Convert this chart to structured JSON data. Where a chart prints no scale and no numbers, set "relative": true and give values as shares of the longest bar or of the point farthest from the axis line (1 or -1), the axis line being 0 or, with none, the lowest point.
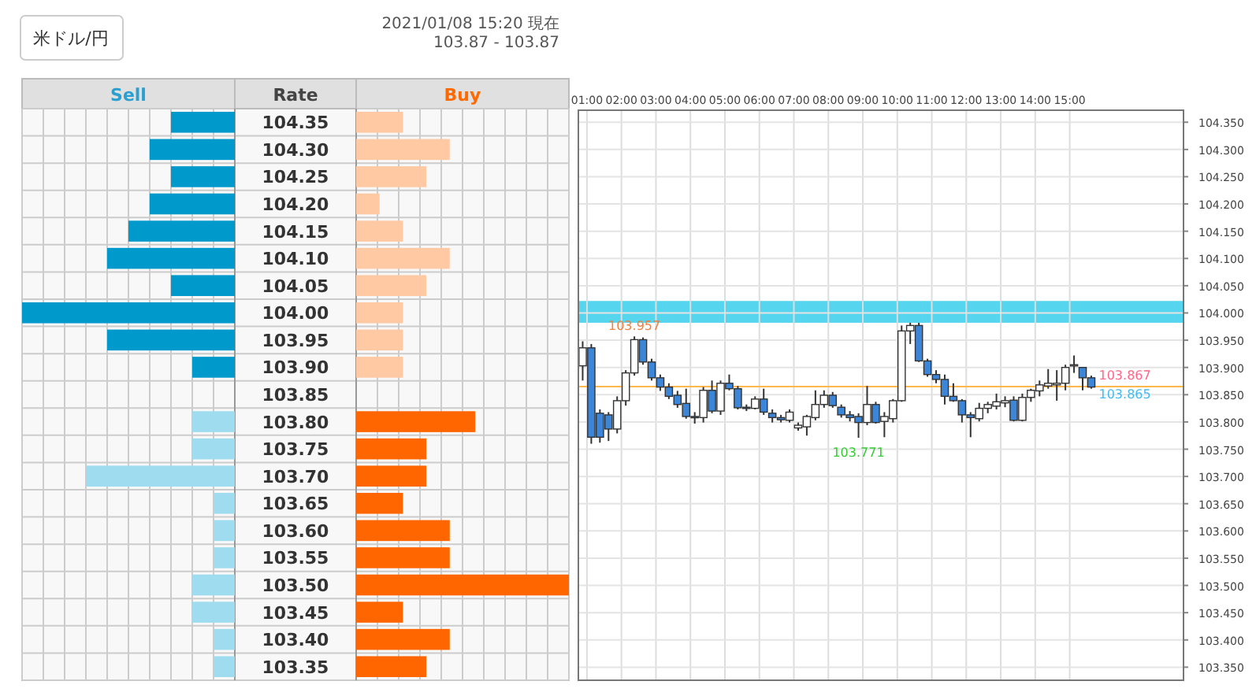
{
  "chart_data": [
    {
      "type": "other",
      "title": "米ドル/円",
      "annotations": [
        "2021/01/08 15:20 現在",
        "103.87 - 103.87"
      ]
    },
    {
      "type": "bar",
      "orientation": "horizontal",
      "relative": true,
      "ylabel": "Rate",
      "grid": true,
      "categories": [
        "104.35",
        "104.30",
        "104.25",
        "104.20",
        "104.15",
        "104.10",
        "104.05",
        "104.00",
        "103.95",
        "103.90",
        "103.85",
        "103.80",
        "103.75",
        "103.70",
        "103.65",
        "103.60",
        "103.55",
        "103.50",
        "103.45",
        "103.40",
        "103.35"
      ],
      "series": [
        {
          "name": "Sell",
          "color": "#2a9fd0",
          "colors": [
            "#0099cc",
            "#0099cc",
            "#0099cc",
            "#0099cc",
            "#0099cc",
            "#0099cc",
            "#0099cc",
            "#0099cc",
            "#0099cc",
            "#0099cc",
            null,
            "#9fdcf0",
            "#9fdcf0",
            "#9fdcf0",
            "#9fdcf0",
            "#9fdcf0",
            "#9fdcf0",
            "#9fdcf0",
            "#9fdcf0",
            "#9fdcf0",
            "#9fdcf0"
          ],
          "values": [
            -0.3,
            -0.4,
            -0.3,
            -0.4,
            -0.5,
            -0.6,
            -0.3,
            -1,
            -0.6,
            -0.2,
            0,
            -0.2,
            -0.2,
            -0.7,
            -0.1,
            -0.1,
            -0.1,
            -0.2,
            -0.2,
            -0.1,
            -0.1
          ]
        }
      ]
    },
    {
      "type": "bar",
      "orientation": "horizontal",
      "relative": true,
      "grid": true,
      "tick_labels": false,
      "categories": [
        "104.35",
        "104.30",
        "104.25",
        "104.20",
        "104.15",
        "104.10",
        "104.05",
        "104.00",
        "103.95",
        "103.90",
        "103.85",
        "103.80",
        "103.75",
        "103.70",
        "103.65",
        "103.60",
        "103.55",
        "103.50",
        "103.45",
        "103.40",
        "103.35"
      ],
      "series": [
        {
          "name": "Buy",
          "color": "#ff6a00",
          "colors": [
            "#ffc9a3",
            "#ffc9a3",
            "#ffc9a3",
            "#ffc9a3",
            "#ffc9a3",
            "#ffc9a3",
            "#ffc9a3",
            "#ffc9a3",
            "#ffc9a3",
            "#ffc9a3",
            null,
            "#ff6600",
            "#ff6600",
            "#ff6600",
            "#ff6600",
            "#ff6600",
            "#ff6600",
            "#ff6600",
            "#ff6600",
            "#ff6600",
            "#ff6600"
          ],
          "values": [
            0.22,
            0.44,
            0.33,
            0.11,
            0.22,
            0.44,
            0.33,
            0.22,
            0.22,
            0.22,
            0,
            0.56,
            0.33,
            0.33,
            0.22,
            0.44,
            0.44,
            1,
            0.22,
            0.44,
            0.33
          ]
        }
      ]
    },
    {
      "type": "candlestick",
      "grid": true,
      "x": [
        0.875,
        1.125,
        1.375,
        1.625,
        1.875,
        2.125,
        2.375,
        2.625,
        2.875,
        3.125,
        3.375,
        3.625,
        3.875,
        4.125,
        4.375,
        4.625,
        4.875,
        5.125,
        5.375,
        5.625,
        5.875,
        6.125,
        6.375,
        6.625,
        6.875,
        7.125,
        7.375,
        7.625,
        7.875,
        8.125,
        8.375,
        8.625,
        8.875,
        9.125,
        9.375,
        9.625,
        9.875,
        10.125,
        10.375,
        10.625,
        10.875,
        11.125,
        11.375,
        11.625,
        11.875,
        12.125,
        12.375,
        12.625,
        12.875,
        13.125,
        13.375,
        13.625,
        13.875,
        14.125,
        14.375,
        14.625,
        14.875,
        15.125,
        15.375,
        15.625
      ],
      "ohlc": [
        [
          103.903,
          103.948,
          103.876,
          103.936
        ],
        [
          103.936,
          103.943,
          103.76,
          103.772
        ],
        [
          103.816,
          103.823,
          103.762,
          103.772
        ],
        [
          103.813,
          103.818,
          103.765,
          103.787
        ],
        [
          103.787,
          103.847,
          103.779,
          103.839
        ],
        [
          103.839,
          103.895,
          103.83,
          103.89
        ],
        [
          103.89,
          103.957,
          103.885,
          103.951
        ],
        [
          103.951,
          103.955,
          103.905,
          103.91
        ],
        [
          103.91,
          103.916,
          103.876,
          103.881
        ],
        [
          103.881,
          103.887,
          103.857,
          103.864
        ],
        [
          103.864,
          103.871,
          103.842,
          103.847
        ],
        [
          103.849,
          103.857,
          103.826,
          103.832
        ],
        [
          103.834,
          103.861,
          103.806,
          103.81
        ],
        [
          103.81,
          103.818,
          103.797,
          103.808
        ],
        [
          103.808,
          103.864,
          103.799,
          103.858
        ],
        [
          103.858,
          103.876,
          103.816,
          103.82
        ],
        [
          103.82,
          103.876,
          103.813,
          103.871
        ],
        [
          103.871,
          103.887,
          103.858,
          103.861
        ],
        [
          103.861,
          103.866,
          103.823,
          103.826
        ],
        [
          103.827,
          103.832,
          103.82,
          103.825
        ],
        [
          103.825,
          103.847,
          103.823,
          103.842
        ],
        [
          103.842,
          103.861,
          103.813,
          103.818
        ],
        [
          103.816,
          103.823,
          103.799,
          103.808
        ],
        [
          103.808,
          103.813,
          103.799,
          103.804
        ],
        [
          103.803,
          103.823,
          103.799,
          103.818
        ],
        [
          103.789,
          103.799,
          103.784,
          103.794
        ],
        [
          103.791,
          103.813,
          103.775,
          103.81
        ],
        [
          103.808,
          103.858,
          103.803,
          103.832
        ],
        [
          103.832,
          103.858,
          103.826,
          103.849
        ],
        [
          103.849,
          103.855,
          103.826,
          103.83
        ],
        [
          103.827,
          103.832,
          103.808,
          103.813
        ],
        [
          103.813,
          103.82,
          103.801,
          103.808
        ],
        [
          103.81,
          103.816,
          103.771,
          103.799
        ],
        [
          103.799,
          103.866,
          103.794,
          103.832
        ],
        [
          103.832,
          103.837,
          103.797,
          103.799
        ],
        [
          103.801,
          103.818,
          103.772,
          103.81
        ],
        [
          103.806,
          103.842,
          103.799,
          103.839
        ],
        [
          103.839,
          103.977,
          103.837,
          103.967
        ],
        [
          103.967,
          103.982,
          103.943,
          103.977
        ],
        [
          103.977,
          103.982,
          103.91,
          103.912
        ],
        [
          103.912,
          103.916,
          103.883,
          103.887
        ],
        [
          103.887,
          103.895,
          103.871,
          103.878
        ],
        [
          103.878,
          103.887,
          103.832,
          103.847
        ],
        [
          103.847,
          103.871,
          103.837,
          103.839
        ],
        [
          103.839,
          103.842,
          103.799,
          103.813
        ],
        [
          103.813,
          103.818,
          103.772,
          103.808
        ],
        [
          103.806,
          103.835,
          103.801,
          103.825
        ],
        [
          103.825,
          103.837,
          103.816,
          103.832
        ],
        [
          103.829,
          103.852,
          103.823,
          103.837
        ],
        [
          103.835,
          103.847,
          103.827,
          103.839
        ],
        [
          103.84,
          103.847,
          103.801,
          103.803
        ],
        [
          103.803,
          103.852,
          103.801,
          103.845
        ],
        [
          103.845,
          103.861,
          103.837,
          103.858
        ],
        [
          103.857,
          103.876,
          103.847,
          103.868
        ],
        [
          103.866,
          103.897,
          103.861,
          103.871
        ],
        [
          103.868,
          103.895,
          103.839,
          103.871
        ],
        [
          103.871,
          103.905,
          103.858,
          103.9
        ],
        [
          103.905,
          103.922,
          103.89,
          103.905
        ],
        [
          103.9,
          103.9,
          103.858,
          103.881
        ],
        [
          103.881,
          103.885,
          103.861,
          103.864
        ]
      ],
      "xlim": [
        0.75,
        18.3
      ],
      "xticks": [
        {
          "value": 1,
          "label": "01:00"
        },
        {
          "value": 2,
          "label": "02:00"
        },
        {
          "value": 3,
          "label": "03:00"
        },
        {
          "value": 4,
          "label": "04:00"
        },
        {
          "value": 5,
          "label": "05:00"
        },
        {
          "value": 6,
          "label": "06:00"
        },
        {
          "value": 7,
          "label": "07:00"
        },
        {
          "value": 8,
          "label": "08:00"
        },
        {
          "value": 9,
          "label": "09:00"
        },
        {
          "value": 10,
          "label": "10:00"
        },
        {
          "value": 11,
          "label": "11:00"
        },
        {
          "value": 12,
          "label": "12:00"
        },
        {
          "value": 13,
          "label": "13:00"
        },
        {
          "value": 14,
          "label": "14:00"
        },
        {
          "value": 15,
          "label": "15:00"
        }
      ],
      "ylim": [
        103.326,
        104.372
      ],
      "yticks": [
        {
          "value": 103.35,
          "label": "103.350"
        },
        {
          "value": 103.4,
          "label": "103.400"
        },
        {
          "value": 103.45,
          "label": "103.450"
        },
        {
          "value": 103.5,
          "label": "103.500"
        },
        {
          "value": 103.55,
          "label": "103.550"
        },
        {
          "value": 103.6,
          "label": "103.600"
        },
        {
          "value": 103.65,
          "label": "103.650"
        },
        {
          "value": 103.7,
          "label": "103.700"
        },
        {
          "value": 103.75,
          "label": "103.750"
        },
        {
          "value": 103.8,
          "label": "103.800"
        },
        {
          "value": 103.85,
          "label": "103.850"
        },
        {
          "value": 103.9,
          "label": "103.900"
        },
        {
          "value": 103.95,
          "label": "103.950"
        },
        {
          "value": 104.0,
          "label": "104.000"
        },
        {
          "value": 104.05,
          "label": "104.050"
        },
        {
          "value": 104.1,
          "label": "104.100"
        },
        {
          "value": 104.15,
          "label": "104.150"
        },
        {
          "value": 104.2,
          "label": "104.200"
        },
        {
          "value": 104.25,
          "label": "104.250"
        },
        {
          "value": 104.3,
          "label": "104.300"
        },
        {
          "value": 104.35,
          "label": "104.350"
        }
      ],
      "bands": [
        {
          "axis": "y",
          "from": 103.982,
          "to": 104.022,
          "color": "#55d5ee"
        }
      ],
      "ref_lines": [
        {
          "axis": "y",
          "value": 103.865,
          "color": "#ffb84d"
        }
      ],
      "annotations": [
        {
          "text": "103.957",
          "x": 2.375,
          "y": 103.957
        },
        {
          "text": "103.771",
          "x": 8.875,
          "y": 103.771
        },
        {
          "text": "103.867",
          "x": 16.6,
          "y": 103.867
        },
        {
          "text": "103.865",
          "x": 16.6,
          "y": 103.865
        }
      ]
    }
  ]
}
